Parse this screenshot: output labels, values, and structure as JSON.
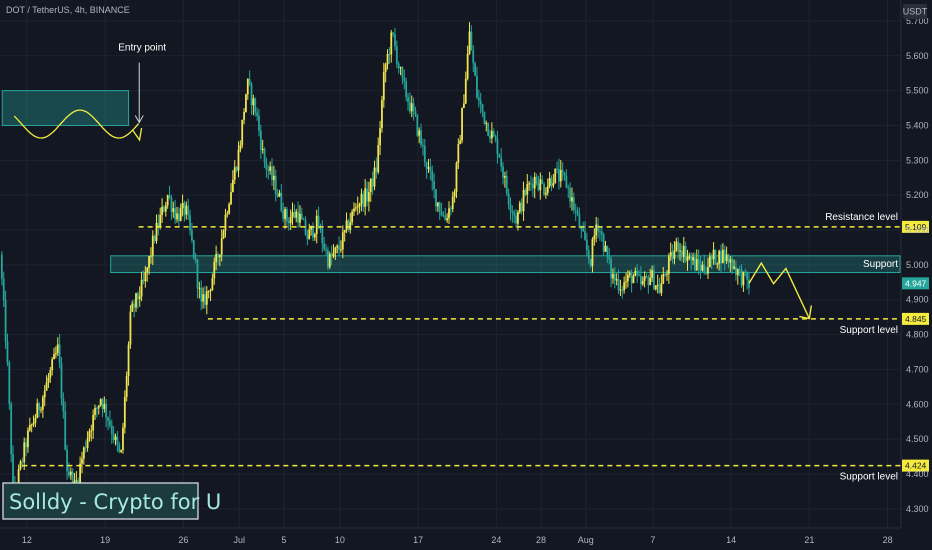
{
  "header": {
    "title": "DOT / TetherUS, 4h, BINANCE"
  },
  "watermark": "Solldy - Crypto for U",
  "colors": {
    "background": "#131722",
    "grid": "#1f2330",
    "up": "#f0e54f",
    "down": "#26a69a",
    "level_line": "#f5eb3f",
    "zone_fill": "#26a69a",
    "arrow": "#f5eb3f",
    "last_price": "#26a69a"
  },
  "chart_data": {
    "type": "candlestick",
    "currency_label": "USDT",
    "y_ticks": [
      4.3,
      4.4,
      4.5,
      4.6,
      4.7,
      4.8,
      4.9,
      5.0,
      5.1,
      5.2,
      5.3,
      5.4,
      5.5,
      5.6,
      5.7
    ],
    "y_tick_labels": [
      "4.300",
      "4.400",
      "4.500",
      "4.600",
      "4.700",
      "4.800",
      "4.900",
      "5.000",
      "5.100",
      "5.200",
      "5.300",
      "5.400",
      "5.500",
      "5.600",
      "5.700"
    ],
    "ylim": [
      4.245,
      5.76
    ],
    "x_ticks": [
      {
        "label": "12",
        "day": 12
      },
      {
        "label": "19",
        "day": 19
      },
      {
        "label": "26",
        "day": 26
      },
      {
        "label": "Jul",
        "day": 31
      },
      {
        "label": "5",
        "day": 35
      },
      {
        "label": "10",
        "day": 40
      },
      {
        "label": "17",
        "day": 47
      },
      {
        "label": "24",
        "day": 54
      },
      {
        "label": "28",
        "day": 58
      },
      {
        "label": "Aug",
        "day": 62
      },
      {
        "label": "7",
        "day": 68
      },
      {
        "label": "14",
        "day": 75
      },
      {
        "label": "21",
        "day": 82
      },
      {
        "label": "28",
        "day": 89
      }
    ],
    "xlim_day": [
      9.6,
      90.2
    ],
    "price_path": [
      [
        9.6,
        5.03
      ],
      [
        10.2,
        4.75
      ],
      [
        10.8,
        4.33
      ],
      [
        12.0,
        4.5
      ],
      [
        13.5,
        4.63
      ],
      [
        14.8,
        4.76
      ],
      [
        15.6,
        4.42
      ],
      [
        16.3,
        4.36
      ],
      [
        17.5,
        4.52
      ],
      [
        18.6,
        4.62
      ],
      [
        19.4,
        4.55
      ],
      [
        20.4,
        4.44
      ],
      [
        21.3,
        4.86
      ],
      [
        22.5,
        4.95
      ],
      [
        23.4,
        5.08
      ],
      [
        24.6,
        5.2
      ],
      [
        25.4,
        5.14
      ],
      [
        26.2,
        5.16
      ],
      [
        27.0,
        5.02
      ],
      [
        27.6,
        4.88
      ],
      [
        28.3,
        4.93
      ],
      [
        29.2,
        5.04
      ],
      [
        30.0,
        5.18
      ],
      [
        31.0,
        5.33
      ],
      [
        31.7,
        5.52
      ],
      [
        32.5,
        5.44
      ],
      [
        33.2,
        5.3
      ],
      [
        34.3,
        5.22
      ],
      [
        35.2,
        5.13
      ],
      [
        36.2,
        5.15
      ],
      [
        37.1,
        5.08
      ],
      [
        38.0,
        5.12
      ],
      [
        39.0,
        5.01
      ],
      [
        40.0,
        5.05
      ],
      [
        40.8,
        5.12
      ],
      [
        41.6,
        5.18
      ],
      [
        42.5,
        5.2
      ],
      [
        43.3,
        5.28
      ],
      [
        44.0,
        5.56
      ],
      [
        44.7,
        5.66
      ],
      [
        45.6,
        5.52
      ],
      [
        46.7,
        5.42
      ],
      [
        47.6,
        5.31
      ],
      [
        48.5,
        5.2
      ],
      [
        49.4,
        5.13
      ],
      [
        50.2,
        5.2
      ],
      [
        51.0,
        5.45
      ],
      [
        51.6,
        5.66
      ],
      [
        52.3,
        5.48
      ],
      [
        53.2,
        5.4
      ],
      [
        54.2,
        5.33
      ],
      [
        55.0,
        5.2
      ],
      [
        55.8,
        5.13
      ],
      [
        56.6,
        5.21
      ],
      [
        57.4,
        5.25
      ],
      [
        58.3,
        5.22
      ],
      [
        59.2,
        5.26
      ],
      [
        60.2,
        5.24
      ],
      [
        61.0,
        5.16
      ],
      [
        61.8,
        5.07
      ],
      [
        62.4,
        5.01
      ],
      [
        63.0,
        5.13
      ],
      [
        63.6,
        5.06
      ],
      [
        64.3,
        4.97
      ],
      [
        65.2,
        4.94
      ],
      [
        66.2,
        4.97
      ],
      [
        67.0,
        4.94
      ],
      [
        67.8,
        4.97
      ],
      [
        68.6,
        4.93
      ],
      [
        69.4,
        5.0
      ],
      [
        70.2,
        5.06
      ],
      [
        71.0,
        5.03
      ],
      [
        71.8,
        5.0
      ],
      [
        72.6,
        4.99
      ],
      [
        73.4,
        5.02
      ],
      [
        74.2,
        5.03
      ],
      [
        75.0,
        5.01
      ],
      [
        75.8,
        4.97
      ],
      [
        76.6,
        4.947
      ]
    ],
    "levels": [
      {
        "name": "resistance",
        "price": 5.109,
        "tag": "5.109",
        "label": "Resistance level"
      },
      {
        "name": "support-mid",
        "price": 4.845,
        "tag": "4.845",
        "label": "Support level"
      },
      {
        "name": "support-low",
        "price": 4.424,
        "tag": "4.424",
        "label": "Support level"
      }
    ],
    "support_zone": {
      "low": 4.978,
      "high": 5.026,
      "label": "Support",
      "start_day": 19.5
    },
    "entry_zone": {
      "low": 5.4,
      "high": 5.5,
      "label": "Entry point",
      "start_day": 9.8,
      "end_day": 21.1
    },
    "projection_path": [
      [
        76.6,
        4.947
      ],
      [
        77.7,
        5.005
      ],
      [
        78.8,
        4.946
      ],
      [
        79.9,
        4.99
      ],
      [
        82.0,
        4.846
      ]
    ],
    "last_price": {
      "value": 4.947,
      "tag": "4.947"
    }
  }
}
